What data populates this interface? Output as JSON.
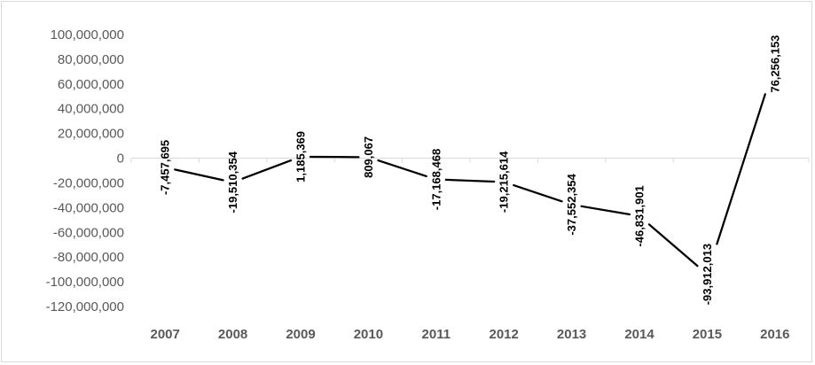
{
  "chart_data": {
    "type": "line",
    "title": "",
    "xlabel": "",
    "ylabel": "",
    "categories": [
      "2007",
      "2008",
      "2009",
      "2010",
      "2011",
      "2012",
      "2013",
      "2014",
      "2015",
      "2016"
    ],
    "series": [
      {
        "values": [
          -7457695,
          -19510354,
          1185369,
          809067,
          -17168468,
          -19215614,
          -37552354,
          -46831901,
          -93912013,
          76256153
        ],
        "data_labels": [
          "-7,457,695",
          "-19,510,354",
          "1,185,369",
          "809,067",
          "-17,168,468",
          "-19,215,614",
          "-37,552,354",
          "-46,831,901",
          "-93,912,013",
          "76,256,153"
        ],
        "color": "#000000"
      }
    ],
    "ylim": [
      -120000000,
      100000000
    ],
    "y_ticks": [
      100000000,
      80000000,
      60000000,
      40000000,
      20000000,
      0,
      -20000000,
      -40000000,
      -60000000,
      -80000000,
      -100000000,
      -120000000
    ],
    "y_tick_labels": [
      "100,000,000",
      "80,000,000",
      "60,000,000",
      "40,000,000",
      "20,000,000",
      "0",
      "-20,000,000",
      "-40,000,000",
      "-60,000,000",
      "-80,000,000",
      "-100,000,000",
      "-120,000,000"
    ],
    "grid": false,
    "legend": "none",
    "axis_color": "#d9d9d9",
    "tick_text_color": "#595959"
  }
}
